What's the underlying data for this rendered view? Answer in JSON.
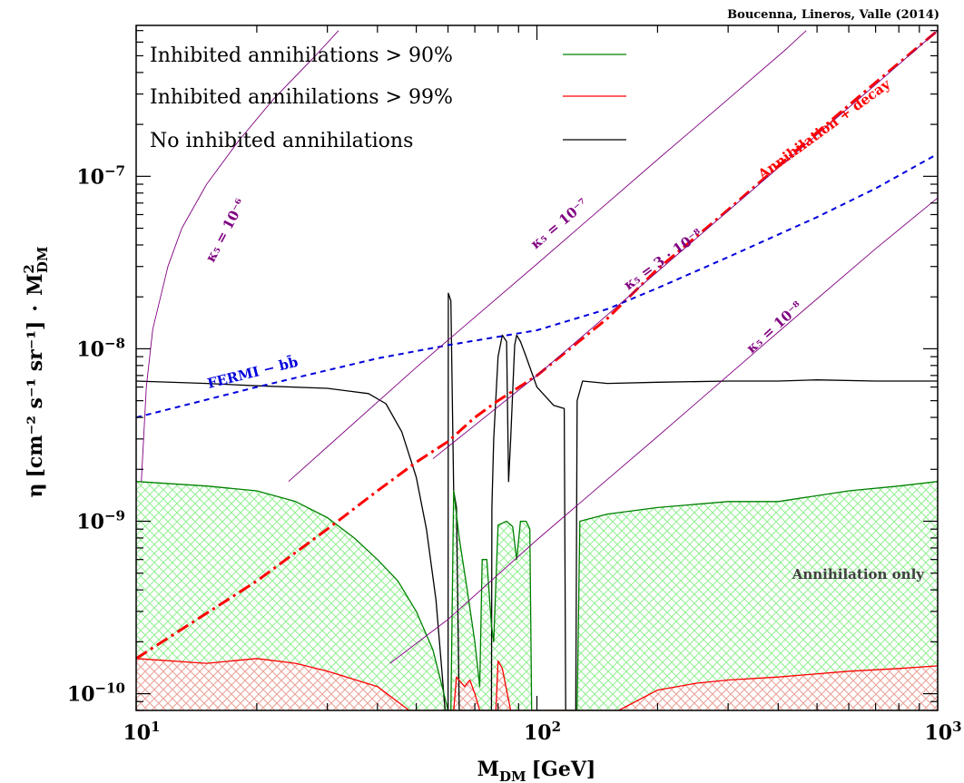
{
  "chart_data": {
    "type": "line",
    "credit": "Boucenna, Lineros, Valle (2014)",
    "xlabel_main": "M",
    "xlabel_sub": "DM",
    "xlabel_unit": "[GeV]",
    "ylabel_eta": "η",
    "ylabel_units": "[cm⁻² s⁻¹ sr⁻¹]",
    "ylabel_times": "·",
    "ylabel_mass": "M",
    "ylabel_mass_sup": "2",
    "ylabel_mass_sub": "DM",
    "x_scale": "log",
    "y_scale": "log",
    "xlim": [
      10,
      1000
    ],
    "ylim": [
      8e-11,
      7.5e-07
    ],
    "x_ticks": [
      {
        "value": 10,
        "base": "10",
        "exp": "1"
      },
      {
        "value": 100,
        "base": "10",
        "exp": "2"
      },
      {
        "value": 1000,
        "base": "10",
        "exp": "3"
      }
    ],
    "y_ticks": [
      {
        "value": 1e-10,
        "base": "10",
        "exp": "−10"
      },
      {
        "value": 1e-09,
        "base": "10",
        "exp": "−9"
      },
      {
        "value": 1e-08,
        "base": "10",
        "exp": "−8"
      },
      {
        "value": 1e-07,
        "base": "10",
        "exp": "−7"
      }
    ],
    "legend": [
      {
        "label": "Inhibited annihilations > 90%",
        "color": "#008000"
      },
      {
        "label": "Inhibited annihilations > 99%",
        "color": "#ff0000"
      },
      {
        "label": "No inhibited annihilations",
        "color": "#000000"
      }
    ],
    "colors": {
      "green": "#008000",
      "red": "#ff0000",
      "black": "#000000",
      "purple": "#800080",
      "blue": "#0000dd",
      "annihilation_decay": "#ff0000",
      "green_hatch": "#90ee90",
      "red_hatch": "#f4a0a0"
    },
    "annotations": {
      "annihilation_decay": "Annihilation + decay",
      "annihilation_only": "Annihilation only",
      "fermi": "FERMI − bb̄",
      "kappa_1e6": "κ₅ = 10⁻⁶",
      "kappa_1e7": "κ₅ = 10⁻⁷",
      "kappa_3e8": "κ₅ = 3 · 10⁻⁸",
      "kappa_1e8": "κ₅ = 10⁻⁸"
    },
    "series": [
      {
        "key": "no_inhibited",
        "color": "#000000",
        "points": [
          [
            10,
            6.5e-09
          ],
          [
            15,
            6.3e-09
          ],
          [
            20,
            6.1e-09
          ],
          [
            30,
            5.9e-09
          ],
          [
            38,
            5.5e-09
          ],
          [
            42,
            4.8e-09
          ],
          [
            46,
            3.3e-09
          ],
          [
            50,
            1.8e-09
          ],
          [
            53,
            9e-10
          ],
          [
            56,
            3.5e-10
          ],
          [
            58,
            1.3e-10
          ],
          [
            59,
            8e-11
          ],
          [
            60,
            8e-11
          ],
          [
            60.1,
            2.1e-08
          ],
          [
            61,
            1.9e-08
          ],
          [
            62,
            1.5e-09
          ],
          [
            63,
            1.2e-09
          ],
          [
            64,
            8e-11
          ],
          [
            68,
            8e-11
          ],
          [
            74,
            8e-11
          ],
          [
            77,
            8e-11
          ],
          [
            77.2,
            1.2e-09
          ],
          [
            78,
            3e-09
          ],
          [
            80,
            9e-09
          ],
          [
            82,
            1.2e-08
          ],
          [
            84,
            1.1e-08
          ],
          [
            85,
            1.7e-09
          ],
          [
            86,
            3e-09
          ],
          [
            88,
            1.05e-08
          ],
          [
            89,
            1.2e-08
          ],
          [
            91,
            1.1e-08
          ],
          [
            94,
            9e-09
          ],
          [
            100,
            6e-09
          ],
          [
            110,
            4.7e-09
          ],
          [
            117,
            4.5e-09
          ],
          [
            118,
            8e-11
          ],
          [
            125,
            8e-11
          ],
          [
            126,
            5e-09
          ],
          [
            130,
            6.5e-09
          ],
          [
            150,
            6.3e-09
          ],
          [
            200,
            6.4e-09
          ],
          [
            300,
            6.5e-09
          ],
          [
            400,
            6.5e-09
          ],
          [
            500,
            6.6e-09
          ],
          [
            700,
            6.5e-09
          ],
          [
            1000,
            6.5e-09
          ]
        ]
      },
      {
        "key": "green_boundary",
        "color": "#008000",
        "points": [
          [
            10,
            1.7e-09
          ],
          [
            15,
            1.6e-09
          ],
          [
            20,
            1.5e-09
          ],
          [
            25,
            1.3e-09
          ],
          [
            30,
            1.05e-09
          ],
          [
            35,
            8e-10
          ],
          [
            40,
            6e-10
          ],
          [
            45,
            4.5e-10
          ],
          [
            50,
            3e-10
          ],
          [
            55,
            1.8e-10
          ],
          [
            58,
            1.1e-10
          ],
          [
            60,
            8e-11
          ],
          [
            61,
            8e-11
          ],
          [
            62,
            1.5e-09
          ],
          [
            64,
            8e-10
          ],
          [
            67,
            4e-10
          ],
          [
            70,
            2e-10
          ],
          [
            72,
            1.1e-10
          ],
          [
            73,
            6e-10
          ],
          [
            75,
            6e-10
          ],
          [
            77,
            2.5e-10
          ],
          [
            78,
            2e-10
          ],
          [
            80,
            9.5e-10
          ],
          [
            84,
            1e-09
          ],
          [
            87,
            9.3e-10
          ],
          [
            89,
            6e-10
          ],
          [
            91,
            1e-09
          ],
          [
            94,
            1e-09
          ],
          [
            96,
            9e-10
          ],
          [
            97,
            8e-11
          ],
          [
            126,
            8e-11
          ],
          [
            128,
            1e-09
          ],
          [
            150,
            1.1e-09
          ],
          [
            200,
            1.2e-09
          ],
          [
            300,
            1.3e-09
          ],
          [
            400,
            1.3e-09
          ],
          [
            600,
            1.5e-09
          ],
          [
            800,
            1.6e-09
          ],
          [
            1000,
            1.7e-09
          ]
        ]
      },
      {
        "key": "red_boundary",
        "color": "#ff0000",
        "points": [
          [
            10,
            1.6e-10
          ],
          [
            15,
            1.5e-10
          ],
          [
            20,
            1.6e-10
          ],
          [
            25,
            1.5e-10
          ],
          [
            30,
            1.35e-10
          ],
          [
            40,
            1.1e-10
          ],
          [
            48,
            8e-11
          ],
          [
            62,
            8e-11
          ],
          [
            63,
            1.25e-10
          ],
          [
            66,
            1.1e-10
          ],
          [
            68,
            1.2e-10
          ],
          [
            70,
            1e-10
          ],
          [
            72,
            8e-11
          ],
          [
            79,
            8e-11
          ],
          [
            80,
            1.55e-10
          ],
          [
            82,
            1.4e-10
          ],
          [
            84,
            1.05e-10
          ],
          [
            86,
            8e-11
          ],
          [
            95,
            8e-11
          ],
          [
            130,
            8e-11
          ],
          [
            160,
            8e-11
          ],
          [
            200,
            1.05e-10
          ],
          [
            250,
            1.15e-10
          ],
          [
            300,
            1.2e-10
          ],
          [
            400,
            1.25e-10
          ],
          [
            600,
            1.35e-10
          ],
          [
            800,
            1.4e-10
          ],
          [
            1000,
            1.45e-10
          ]
        ]
      },
      {
        "key": "annihilation_decay",
        "color": "#ff0000",
        "points": [
          [
            10,
            1.6e-10
          ],
          [
            20,
            4.5e-10
          ],
          [
            30,
            9e-10
          ],
          [
            40,
            1.5e-09
          ],
          [
            50,
            2.2e-09
          ],
          [
            60,
            2.9e-09
          ],
          [
            70,
            4e-09
          ],
          [
            80,
            5e-09
          ],
          [
            100,
            7e-09
          ],
          [
            150,
            1.5e-08
          ],
          [
            200,
            2.9e-08
          ],
          [
            300,
            6.4e-08
          ],
          [
            500,
            1.8e-07
          ],
          [
            700,
            3.5e-07
          ],
          [
            1000,
            7e-07
          ]
        ]
      },
      {
        "key": "fermi",
        "color": "#0000dd",
        "points": [
          [
            10,
            4e-09
          ],
          [
            20,
            6e-09
          ],
          [
            40,
            8.8e-09
          ],
          [
            60,
            1.05e-08
          ],
          [
            100,
            1.28e-08
          ],
          [
            150,
            1.7e-08
          ],
          [
            200,
            2.25e-08
          ],
          [
            300,
            3.4e-08
          ],
          [
            500,
            5.8e-08
          ],
          [
            700,
            8.5e-08
          ],
          [
            1000,
            1.35e-07
          ]
        ]
      },
      {
        "key": "kappa_1e6",
        "color": "#800080",
        "points": [
          [
            10.3,
            1.7e-09
          ],
          [
            10.6,
            6e-09
          ],
          [
            11,
            1.3e-08
          ],
          [
            12,
            3e-08
          ],
          [
            13,
            5e-08
          ],
          [
            15,
            9e-08
          ],
          [
            18,
            1.6e-07
          ],
          [
            22,
            2.8e-07
          ],
          [
            28,
            5e-07
          ],
          [
            32,
            7e-07
          ]
        ]
      },
      {
        "key": "kappa_1e7",
        "color": "#800080",
        "points": [
          [
            24,
            1.7e-09
          ],
          [
            30,
            2.7e-09
          ],
          [
            50,
            7.8e-09
          ],
          [
            100,
            3.1e-08
          ],
          [
            200,
            1.25e-07
          ],
          [
            300,
            2.8e-07
          ],
          [
            420,
            5.5e-07
          ],
          [
            470,
            7e-07
          ]
        ]
      },
      {
        "key": "kappa_3e8",
        "color": "#800080",
        "points": [
          [
            55,
            2.3e-09
          ],
          [
            100,
            7e-09
          ],
          [
            200,
            2.8e-08
          ],
          [
            400,
            1.12e-07
          ],
          [
            700,
            3.4e-07
          ],
          [
            1000,
            7e-07
          ]
        ]
      },
      {
        "key": "kappa_1e8",
        "color": "#800080",
        "points": [
          [
            43,
            1.5e-10
          ],
          [
            60,
            2.7e-10
          ],
          [
            100,
            7.8e-10
          ],
          [
            200,
            3.1e-09
          ],
          [
            400,
            1.25e-08
          ],
          [
            700,
            3.8e-08
          ],
          [
            1000,
            7.5e-08
          ]
        ]
      }
    ],
    "regions": [
      {
        "key": "green_hatch",
        "color": "#90ee90",
        "top": [
          [
            10,
            1.7e-09
          ],
          [
            15,
            1.6e-09
          ],
          [
            20,
            1.5e-09
          ],
          [
            25,
            1.3e-09
          ],
          [
            30,
            1.05e-09
          ],
          [
            35,
            8e-10
          ],
          [
            40,
            6e-10
          ],
          [
            45,
            4.5e-10
          ],
          [
            50,
            3e-10
          ],
          [
            55,
            1.8e-10
          ],
          [
            58,
            1.1e-10
          ],
          [
            60,
            8e-11
          ],
          [
            61,
            8e-11
          ],
          [
            62,
            1.5e-09
          ],
          [
            64,
            8e-10
          ],
          [
            67,
            4e-10
          ],
          [
            70,
            2e-10
          ],
          [
            72,
            1.1e-10
          ],
          [
            73,
            6e-10
          ],
          [
            75,
            6e-10
          ],
          [
            77,
            2.5e-10
          ],
          [
            78,
            2e-10
          ],
          [
            80,
            9.5e-10
          ],
          [
            84,
            1e-09
          ],
          [
            87,
            9.3e-10
          ],
          [
            89,
            6e-10
          ],
          [
            91,
            1e-09
          ],
          [
            94,
            1e-09
          ],
          [
            96,
            9e-10
          ],
          [
            97,
            8e-11
          ],
          [
            126,
            8e-11
          ],
          [
            128,
            1e-09
          ],
          [
            150,
            1.1e-09
          ],
          [
            200,
            1.2e-09
          ],
          [
            300,
            1.3e-09
          ],
          [
            400,
            1.3e-09
          ],
          [
            600,
            1.5e-09
          ],
          [
            800,
            1.6e-09
          ],
          [
            1000,
            1.7e-09
          ]
        ]
      },
      {
        "key": "red_hatch",
        "color": "#f4a0a0",
        "top": [
          [
            10,
            1.6e-10
          ],
          [
            15,
            1.5e-10
          ],
          [
            20,
            1.6e-10
          ],
          [
            25,
            1.5e-10
          ],
          [
            30,
            1.35e-10
          ],
          [
            40,
            1.1e-10
          ],
          [
            48,
            8e-11
          ],
          [
            62,
            8e-11
          ],
          [
            63,
            1.25e-10
          ],
          [
            66,
            1.1e-10
          ],
          [
            68,
            1.2e-10
          ],
          [
            70,
            1e-10
          ],
          [
            72,
            8e-11
          ],
          [
            79,
            8e-11
          ],
          [
            80,
            1.55e-10
          ],
          [
            82,
            1.4e-10
          ],
          [
            84,
            1.05e-10
          ],
          [
            86,
            8e-11
          ],
          [
            95,
            8e-11
          ],
          [
            130,
            8e-11
          ],
          [
            160,
            8e-11
          ],
          [
            200,
            1.05e-10
          ],
          [
            250,
            1.15e-10
          ],
          [
            300,
            1.2e-10
          ],
          [
            400,
            1.25e-10
          ],
          [
            600,
            1.35e-10
          ],
          [
            800,
            1.4e-10
          ],
          [
            1000,
            1.45e-10
          ]
        ]
      }
    ]
  }
}
